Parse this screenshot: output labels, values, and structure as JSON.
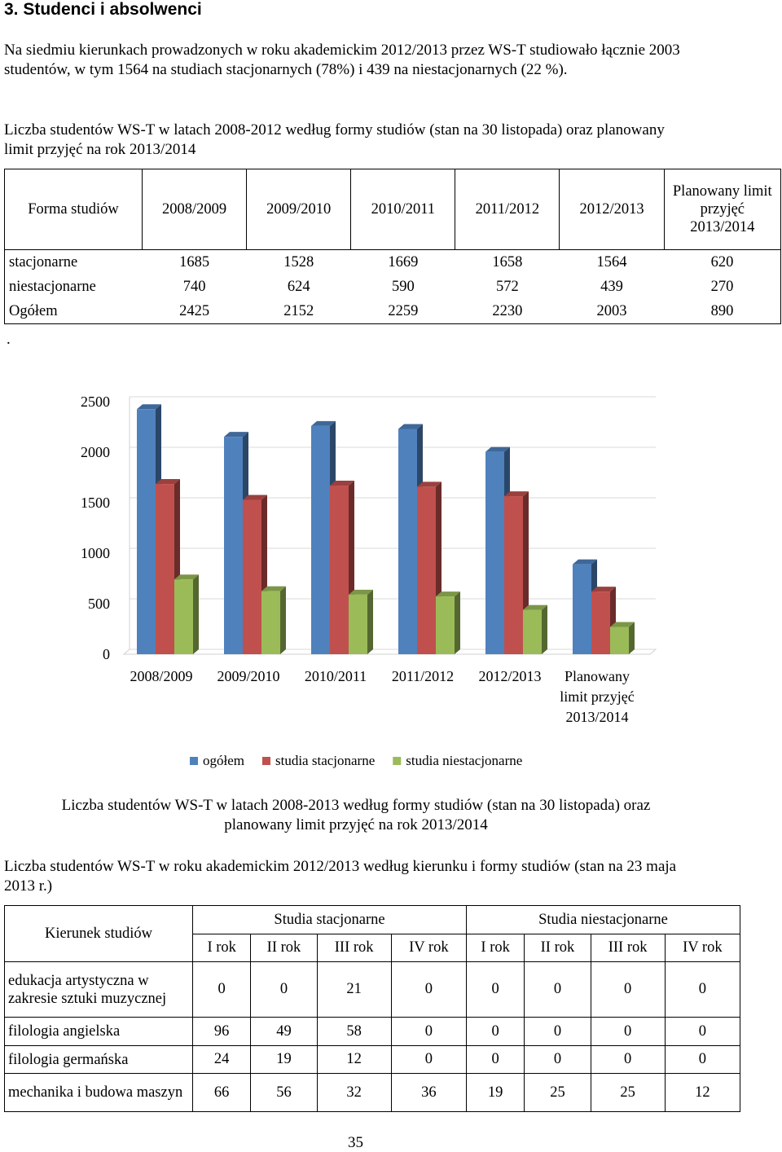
{
  "heading": "3. Studenci i absolwenci",
  "intro": "Na siedmiu kierunkach prowadzonych w roku akademickim 2012/2013 przez WS-T studiowało łącznie 2003 studentów, w tym 1564 na studiach stacjonarnych (78%) i 439 na niestacjonarnych (22 %).",
  "table1_title": "Liczba studentów WS-T w latach 2008-2012 według formy studiów (stan na 30 listopada) oraz planowany limit przyjęć na rok 2013/2014",
  "table1": {
    "header": [
      "Forma studiów",
      "2008/2009",
      "2009/2010",
      "2010/2011",
      "2011/2012",
      "2012/2013",
      "Planowany limit przyjęć 2013/2014"
    ],
    "rows": [
      [
        "stacjonarne",
        "1685",
        "1528",
        "1669",
        "1658",
        "1564",
        "620"
      ],
      [
        "niestacjonarne",
        "740",
        "624",
        "590",
        "572",
        "439",
        "270"
      ],
      [
        "Ogółem",
        "2425",
        "2152",
        "2259",
        "2230",
        "2003",
        "890"
      ]
    ]
  },
  "stray": ".",
  "chart_data": {
    "type": "bar3d",
    "categories": [
      "2008/2009",
      "2009/2010",
      "2010/2011",
      "2011/2012",
      "2012/2013",
      "Planowany limit przyjęć 2013/2014"
    ],
    "series": [
      {
        "name": "ogółem",
        "color": "#4f81bd",
        "values": [
          2425,
          2152,
          2259,
          2230,
          2003,
          890
        ]
      },
      {
        "name": "studia stacjonarne",
        "color": "#c0504d",
        "values": [
          1685,
          1528,
          1669,
          1658,
          1564,
          620
        ]
      },
      {
        "name": "studia niestacjonarne",
        "color": "#9bbb59",
        "values": [
          740,
          624,
          590,
          572,
          439,
          270
        ]
      }
    ],
    "ylim": [
      0,
      2500
    ],
    "yticks": [
      0,
      500,
      1000,
      1500,
      2000,
      2500
    ],
    "grid": true,
    "legend": "bottom"
  },
  "chart_caption": "Liczba studentów WS-T w latach 2008-2013 według formy studiów (stan na 30 listopada) oraz planowany limit przyjęć na rok 2013/2014",
  "table2_title": "Liczba studentów WS-T w roku akademickim 2012/2013 według kierunku i formy studiów (stan na 23 maja 2013 r.)",
  "table2": {
    "corner": "Kierunek studiów",
    "groups": [
      "Studia stacjonarne",
      "Studia niestacjonarne"
    ],
    "years": [
      "I rok",
      "II rok",
      "III rok",
      "IV rok",
      "I rok",
      "II rok",
      "III rok",
      "IV rok"
    ],
    "rows": [
      [
        "edukacja artystyczna w zakresie sztuki muzycznej",
        "0",
        "0",
        "21",
        "0",
        "0",
        "0",
        "0",
        "0"
      ],
      [
        "filologia angielska",
        "96",
        "49",
        "58",
        "0",
        "0",
        "0",
        "0",
        "0"
      ],
      [
        "filologia germańska",
        "24",
        "19",
        "12",
        "0",
        "0",
        "0",
        "0",
        "0"
      ],
      [
        "mechanika i budowa maszyn",
        "66",
        "56",
        "32",
        "36",
        "19",
        "25",
        "25",
        "12"
      ]
    ]
  },
  "page_number": "35"
}
